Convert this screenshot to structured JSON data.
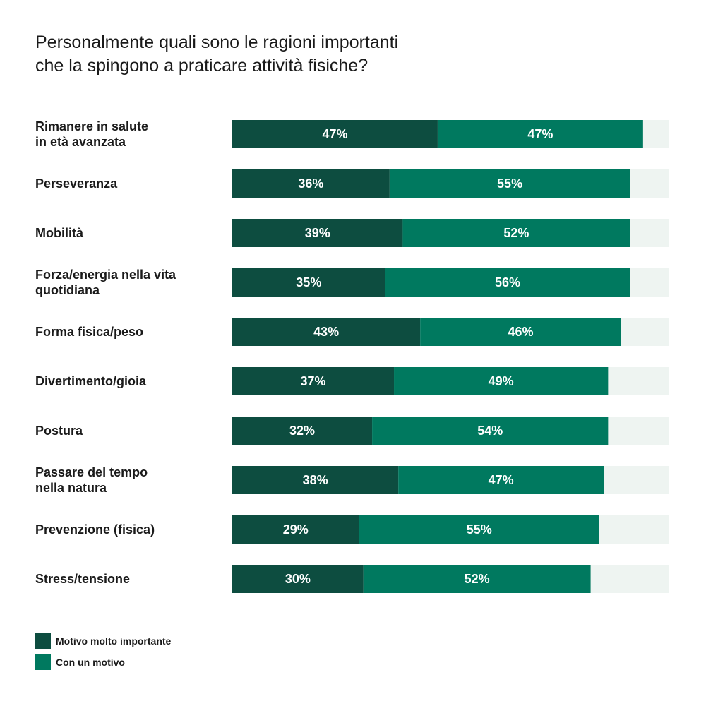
{
  "colors": {
    "series1": "#0d4d40",
    "series2": "#00795f",
    "track": "#eef4f1",
    "text": "#1a1a1a",
    "bar_text": "#ffffff"
  },
  "chart_data": {
    "type": "bar",
    "orientation": "horizontal",
    "stacked": true,
    "title": "Personalmente quali sono le ragioni importanti\nche la spingono a praticare attività fisiche?",
    "categories": [
      "Rimanere in salute\nin età avanzata",
      "Perseveranza",
      "Mobilità",
      "Forza/energia nella vita\nquotidiana",
      "Forma fisica/peso",
      "Divertimento/gioia",
      "Postura",
      "Passare del tempo\nnella natura",
      "Prevenzione (fisica)",
      "Stress/tensione"
    ],
    "series": [
      {
        "name": "Motivo molto importante",
        "values": [
          47,
          36,
          39,
          35,
          43,
          37,
          32,
          38,
          29,
          30
        ]
      },
      {
        "name": "Con un motivo",
        "values": [
          47,
          55,
          52,
          56,
          46,
          49,
          54,
          47,
          55,
          52
        ]
      }
    ],
    "value_suffix": "%",
    "xlim": [
      0,
      100
    ],
    "legend_position": "bottom-left",
    "grid": false
  }
}
